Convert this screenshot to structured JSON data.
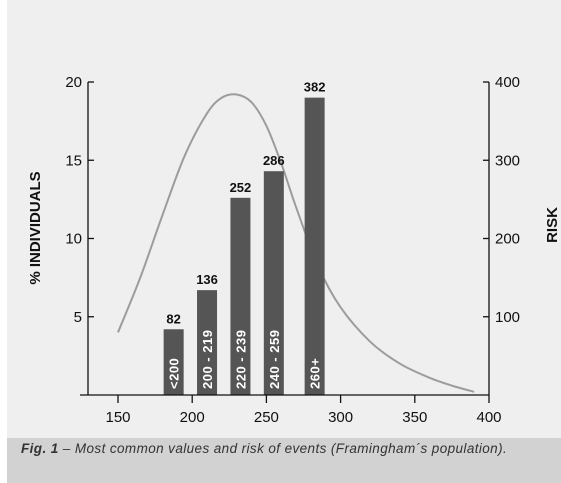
{
  "chart_data": {
    "type": "bar",
    "x_axis": {
      "min": 150,
      "max": 400,
      "ticks": [
        150,
        200,
        250,
        300,
        350,
        400
      ]
    },
    "y_left": {
      "label": "% INDIVIDUALS",
      "min": 0,
      "max": 20,
      "ticks": [
        5,
        10,
        15,
        20
      ]
    },
    "y_right": {
      "label": "RISK",
      "min": 0,
      "max": 400,
      "ticks": [
        100,
        200,
        300,
        400
      ]
    },
    "bars": [
      {
        "category": "<200",
        "x_center": 187.5,
        "percent": 4.2,
        "risk": "82"
      },
      {
        "category": "200 - 219",
        "x_center": 210,
        "percent": 6.7,
        "risk": "136"
      },
      {
        "category": "220 - 239",
        "x_center": 232.5,
        "percent": 12.6,
        "risk": "252"
      },
      {
        "category": "240 - 259",
        "x_center": 255,
        "percent": 14.3,
        "risk": "286"
      },
      {
        "category": "260+",
        "x_center": 282.5,
        "percent": 19.0,
        "risk": "382"
      }
    ],
    "curve": {
      "x": [
        150,
        165,
        180,
        195,
        210,
        220,
        230,
        240,
        250,
        260,
        270,
        285,
        300,
        320,
        340,
        360,
        375,
        390
      ],
      "y": [
        4.0,
        7.5,
        11.5,
        15.3,
        18.0,
        19.0,
        19.2,
        18.7,
        17.2,
        14.8,
        12.0,
        8.2,
        5.6,
        3.4,
        2.0,
        1.1,
        0.6,
        0.2
      ]
    },
    "colors": {
      "bar": "#555555",
      "curve": "#9c9c9c",
      "axis": "#111111"
    }
  },
  "caption": {
    "label": "Fig. 1",
    "text": " – Most common values and risk of events (Framingham´s population)."
  }
}
